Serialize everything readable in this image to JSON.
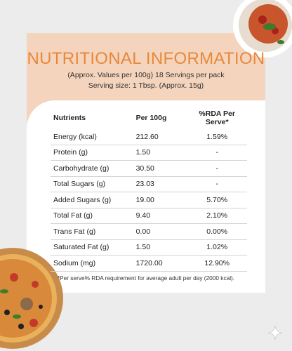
{
  "title": "NUTRITIONAL INFORMATION",
  "subtitle": [
    "(Approx. Values per 100g) 18 Servings per pack",
    "Serving size: 1 Tbsp. (Approx. 15g)"
  ],
  "table": {
    "headers": [
      "Nutrients",
      "Per 100g",
      "%RDA Per Serve*"
    ],
    "rows": [
      [
        "Energy (kcal)",
        "212.60",
        "1.59%"
      ],
      [
        "Protein (g)",
        "1.50",
        "-"
      ],
      [
        "Carbohydrate (g)",
        "30.50",
        "-"
      ],
      [
        "Total Sugars (g)",
        "23.03",
        "-"
      ],
      [
        "Added Sugars (g)",
        "19.00",
        "5.70%"
      ],
      [
        "Total Fat (g)",
        "9.40",
        "2.10%"
      ],
      [
        "Trans Fat (g)",
        "0.00",
        "0.00%"
      ],
      [
        "Saturated Fat (g)",
        "1.50",
        "1.02%"
      ],
      [
        "Sodium (mg)",
        "1720.00",
        "12.90%"
      ]
    ]
  },
  "footnote": "*Per serve% RDA requirement for average adult per day (2000 kcal)."
}
